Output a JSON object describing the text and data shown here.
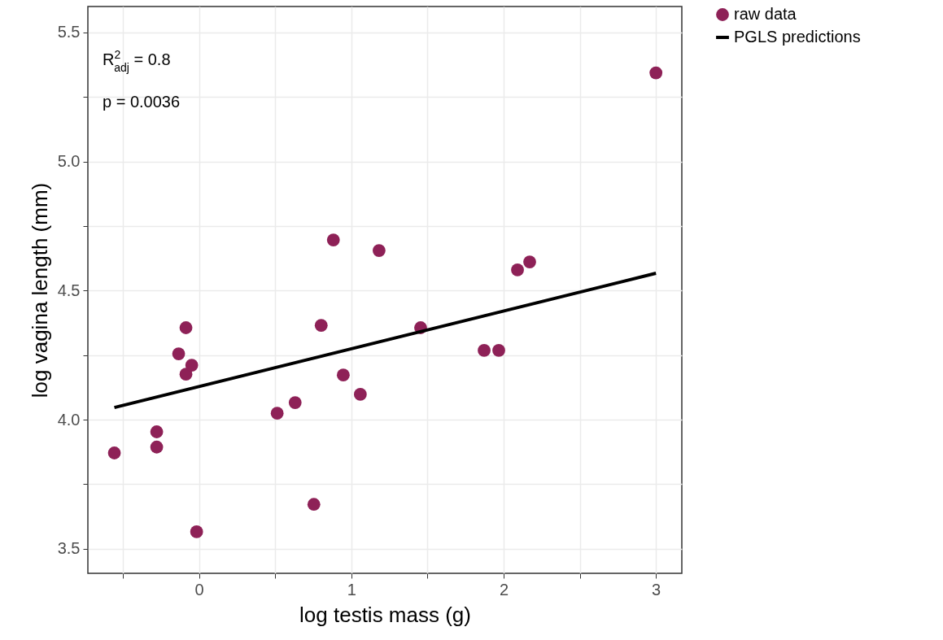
{
  "chart_data": {
    "type": "scatter",
    "xlabel": "log testis mass (g)",
    "ylabel": "log vagina length (mm)",
    "xlim": [
      -0.73,
      3.17
    ],
    "ylim": [
      3.405,
      5.6
    ],
    "xticks": [
      {
        "value": -0.5,
        "label": null
      },
      0,
      {
        "value": 0.5,
        "label": null
      },
      1,
      {
        "value": 1.5,
        "label": null
      },
      2,
      {
        "value": 2.5,
        "label": null
      },
      3
    ],
    "yticks": [
      3.5,
      {
        "value": 3.75,
        "label": null
      },
      {
        "value": 4.0,
        "label": "4.0"
      },
      {
        "value": 4.25,
        "label": null
      },
      4.5,
      {
        "value": 4.75,
        "label": null
      },
      {
        "value": 5.0,
        "label": "5.0"
      },
      {
        "value": 5.25,
        "label": null
      },
      5.5
    ],
    "grid": true,
    "legend": "right",
    "annotations": [
      "R$^{2}$$_{adj}$ = 0.8",
      "p = 0.0036"
    ],
    "series": [
      {
        "name": "raw data",
        "color": "#8e2157",
        "marker": "circle",
        "x": [
          -0.556,
          -0.278,
          -0.278,
          -0.134,
          -0.086,
          -0.086,
          -0.048,
          -0.016,
          0.513,
          0.631,
          0.754,
          0.802,
          0.882,
          0.947,
          1.059,
          1.182,
          1.455,
          1.872,
          1.968,
          2.091,
          2.171,
          3.0
        ],
        "values": [
          3.871,
          3.953,
          3.894,
          4.255,
          4.356,
          4.176,
          4.211,
          3.566,
          4.025,
          4.066,
          3.672,
          4.365,
          4.696,
          4.173,
          4.098,
          4.655,
          4.356,
          4.268,
          4.268,
          4.58,
          4.611,
          5.343
        ]
      },
      {
        "name": "PGLS predictions",
        "type": "line",
        "color": "#000000",
        "x": [
          -0.556,
          3.0
        ],
        "values": [
          4.047,
          4.567
        ]
      }
    ]
  }
}
